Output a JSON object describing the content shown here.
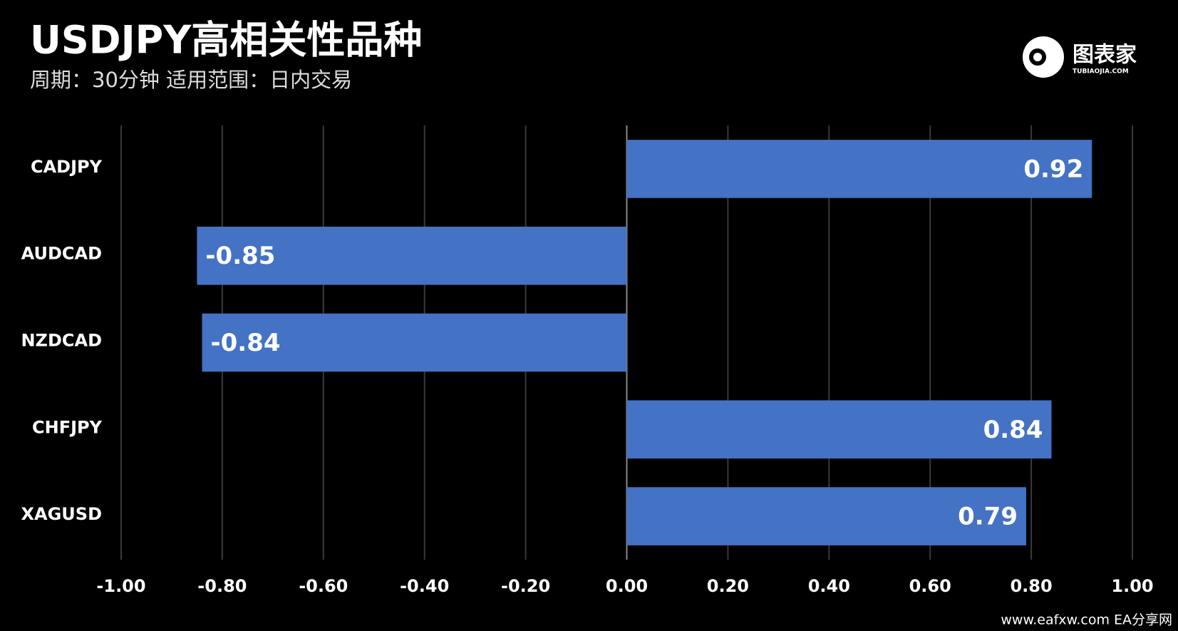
{
  "chart_data": {
    "type": "barh",
    "title": "USDJPY高相关性品种",
    "subtitle": "周期：30分钟  适用范围：日内交易",
    "categories": [
      "CADJPY",
      "AUDCAD",
      "NZDCAD",
      "CHFJPY",
      "XAGUSD"
    ],
    "values": [
      0.92,
      -0.85,
      -0.84,
      0.84,
      0.79
    ],
    "color": "#4472c4",
    "xlim": [
      -1,
      1
    ],
    "xticks": [
      {
        "value": -1,
        "label": "-1.00"
      },
      {
        "value": -0.8,
        "label": "-0.80"
      },
      {
        "value": -0.6,
        "label": "-0.60"
      },
      {
        "value": -0.4,
        "label": "-0.40"
      },
      {
        "value": -0.2,
        "label": "-0.20"
      },
      {
        "value": 0,
        "label": "0.00"
      },
      {
        "value": 0.2,
        "label": "0.20"
      },
      {
        "value": 0.4,
        "label": "0.40"
      },
      {
        "value": 0.6,
        "label": "0.60"
      },
      {
        "value": 0.8,
        "label": "0.80"
      },
      {
        "value": 1,
        "label": "1.00"
      }
    ],
    "grid": true
  },
  "logo": {
    "name": "图表家",
    "site": "TUBIAOJIA.COM"
  },
  "watermark": "www.eafxw.com   EA分享网"
}
